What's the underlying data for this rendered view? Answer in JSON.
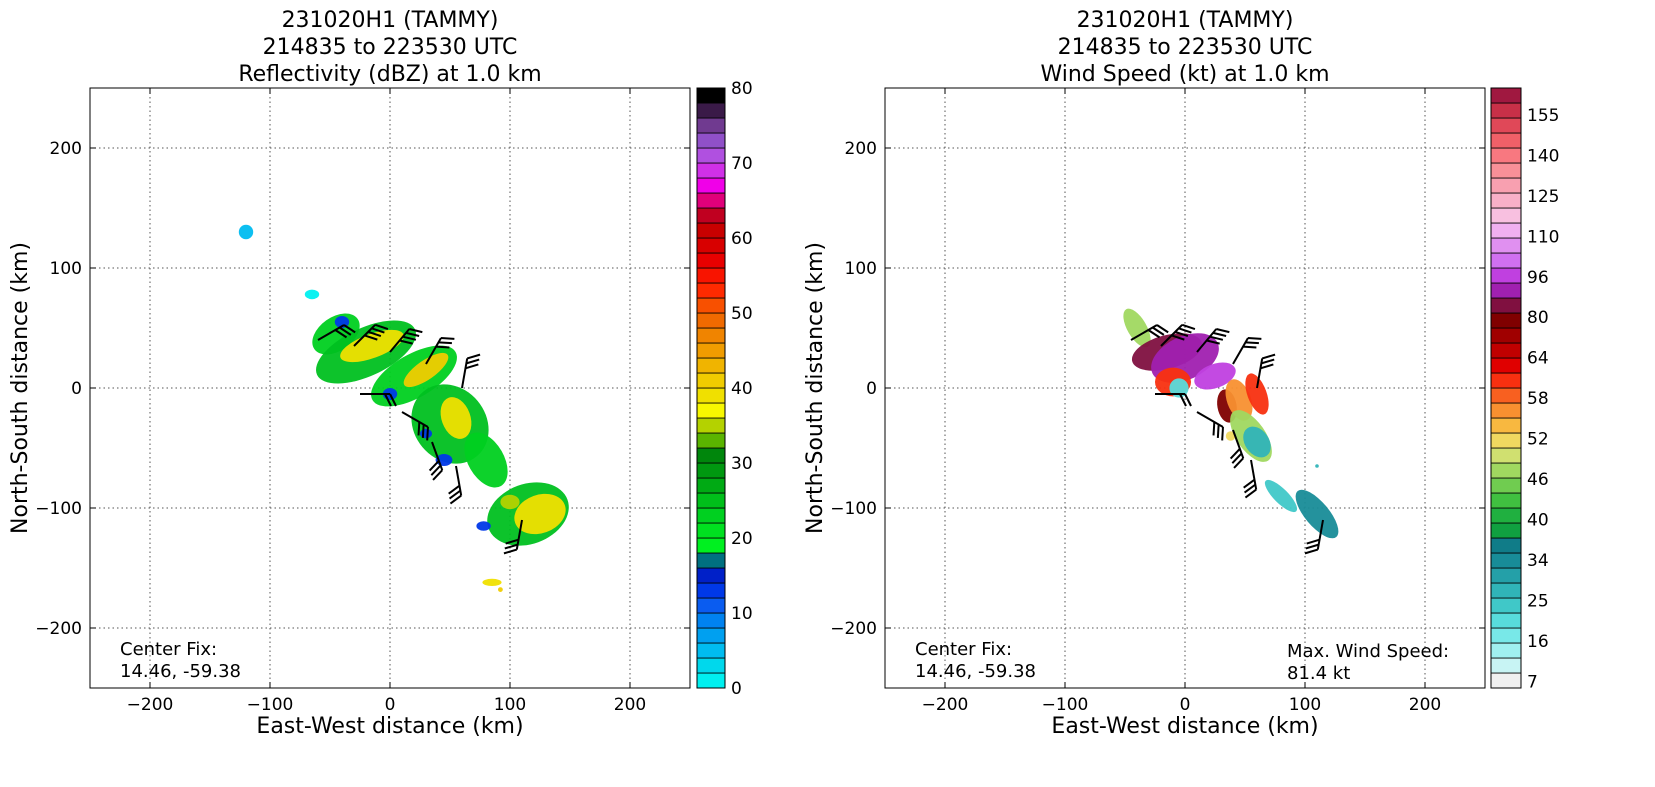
{
  "panels": [
    {
      "title_lines": [
        "231020H1 (TAMMY)",
        "214835 to 223530 UTC",
        "Reflectivity (dBZ) at 1.0 km"
      ],
      "xlabel": "East-West distance (km)",
      "ylabel": "North-South distance (km)",
      "fix_label": "Center Fix:",
      "fix_value": "14.46, -59.38",
      "note_lines": [],
      "colorbar": {
        "colors": [
          "#00f0f0",
          "#00d8ec",
          "#00bcf0",
          "#00a0f0",
          "#0082f0",
          "#0a5cf0",
          "#0038e8",
          "#0020c8",
          "#007080",
          "#00f020",
          "#00e020",
          "#00d020",
          "#00bf1a",
          "#00aa14",
          "#009810",
          "#00860c",
          "#5ab400",
          "#b4d200",
          "#f8f800",
          "#f0e000",
          "#f0cc00",
          "#f0b400",
          "#f09c00",
          "#f08400",
          "#f06a00",
          "#f85000",
          "#ff2a00",
          "#f81400",
          "#e80000",
          "#d80000",
          "#c80000",
          "#c00020",
          "#e0007a",
          "#f000e8",
          "#d030e8",
          "#b050e0",
          "#9050c8",
          "#703a90",
          "#3a1a48",
          "#000000"
        ],
        "ticks": [
          "0",
          "10",
          "20",
          "30",
          "40",
          "50",
          "60",
          "70",
          "80"
        ],
        "tick_positions": [
          0,
          5,
          10,
          15,
          20,
          25,
          30,
          35,
          40
        ]
      },
      "blobs": [
        {
          "x": -120,
          "y": 130,
          "rx": 6,
          "ry": 6,
          "color": "#00bcf0",
          "rot": 0
        },
        {
          "x": -65,
          "y": 78,
          "rx": 6,
          "ry": 4,
          "color": "#00f0f0",
          "rot": 0
        },
        {
          "x": -45,
          "y": 45,
          "rx": 22,
          "ry": 14,
          "color": "#00d020",
          "rot": -35
        },
        {
          "x": -20,
          "y": 30,
          "rx": 45,
          "ry": 20,
          "color": "#00c020",
          "rot": -25
        },
        {
          "x": 20,
          "y": 10,
          "rx": 40,
          "ry": 18,
          "color": "#00d020",
          "rot": -30
        },
        {
          "x": 50,
          "y": -30,
          "rx": 30,
          "ry": 35,
          "color": "#00c020",
          "rot": -40
        },
        {
          "x": 80,
          "y": -60,
          "rx": 15,
          "ry": 25,
          "color": "#00d020",
          "rot": -30
        },
        {
          "x": 115,
          "y": -105,
          "rx": 35,
          "ry": 25,
          "color": "#00c020",
          "rot": -20
        },
        {
          "x": -15,
          "y": 35,
          "rx": 28,
          "ry": 10,
          "color": "#f0e000",
          "rot": -20
        },
        {
          "x": 30,
          "y": 15,
          "rx": 22,
          "ry": 8,
          "color": "#f0cc00",
          "rot": -35
        },
        {
          "x": 55,
          "y": -25,
          "rx": 12,
          "ry": 18,
          "color": "#f0e000",
          "rot": -20
        },
        {
          "x": 125,
          "y": -105,
          "rx": 22,
          "ry": 16,
          "color": "#f0e000",
          "rot": -20
        },
        {
          "x": 100,
          "y": -95,
          "rx": 8,
          "ry": 6,
          "color": "#b4d200",
          "rot": 0
        },
        {
          "x": -40,
          "y": 55,
          "rx": 6,
          "ry": 5,
          "color": "#0038e8",
          "rot": 0
        },
        {
          "x": 0,
          "y": -5,
          "rx": 6,
          "ry": 5,
          "color": "#0038e8",
          "rot": 0
        },
        {
          "x": 45,
          "y": -60,
          "rx": 7,
          "ry": 5,
          "color": "#0038e8",
          "rot": 0
        },
        {
          "x": 30,
          "y": -38,
          "rx": 5,
          "ry": 4,
          "color": "#0038e8",
          "rot": 0
        },
        {
          "x": 78,
          "y": -115,
          "rx": 6,
          "ry": 4,
          "color": "#0038e8",
          "rot": 0
        },
        {
          "x": 85,
          "y": -162,
          "rx": 8,
          "ry": 3,
          "color": "#f0e000",
          "rot": 0
        },
        {
          "x": 92,
          "y": -168,
          "rx": 2,
          "ry": 2,
          "color": "#f0cc00",
          "rot": 0
        }
      ],
      "barbs": [
        {
          "x": -60,
          "y": 40,
          "dir": 60,
          "flags": 3
        },
        {
          "x": -30,
          "y": 35,
          "dir": 45,
          "flags": 4
        },
        {
          "x": 0,
          "y": 30,
          "dir": 40,
          "flags": 4
        },
        {
          "x": 30,
          "y": 20,
          "dir": 30,
          "flags": 3
        },
        {
          "x": 60,
          "y": 0,
          "dir": 10,
          "flags": 3
        },
        {
          "x": -25,
          "y": -5,
          "dir": 90,
          "flags": 2
        },
        {
          "x": 10,
          "y": -20,
          "dir": 120,
          "flags": 3
        },
        {
          "x": 35,
          "y": -45,
          "dir": 160,
          "flags": 3
        },
        {
          "x": 55,
          "y": -65,
          "dir": 170,
          "flags": 3
        },
        {
          "x": 110,
          "y": -110,
          "dir": 190,
          "flags": 3
        }
      ]
    },
    {
      "title_lines": [
        "231020H1 (TAMMY)",
        "214835 to 223530 UTC",
        "Wind Speed (kt) at 1.0 km"
      ],
      "xlabel": "East-West distance (km)",
      "ylabel": "North-South distance (km)",
      "fix_label": "Center Fix:",
      "fix_value": "14.46, -59.38",
      "note_lines": [
        "Max. Wind Speed:",
        "81.4 kt"
      ],
      "colorbar": {
        "colors": [
          "#f0f0f0",
          "#c8f4f4",
          "#a0f0f0",
          "#78e8e8",
          "#58dcdc",
          "#40c8c8",
          "#30b4b8",
          "#24a0a8",
          "#188c98",
          "#107c88",
          "#10a040",
          "#20b040",
          "#40c040",
          "#70cc50",
          "#a0d860",
          "#d0e070",
          "#f0d860",
          "#f8b840",
          "#f89030",
          "#f86020",
          "#f83010",
          "#e00000",
          "#c00000",
          "#a00000",
          "#800000",
          "#801040",
          "#a020b0",
          "#c040e0",
          "#d070f0",
          "#e090f0",
          "#f0b0f0",
          "#f8c0e0",
          "#f8b0c8",
          "#f8a0b0",
          "#f89098",
          "#f87880",
          "#f06068",
          "#e04858",
          "#c83048",
          "#a01840"
        ],
        "ticks": [
          "7",
          "16",
          "25",
          "34",
          "40",
          "46",
          "52",
          "58",
          "64",
          "80",
          "96",
          "110",
          "125",
          "140",
          "155"
        ],
        "tick_positions": [
          0.5,
          3.5,
          6.5,
          9.5,
          12.5,
          15.5,
          18.5,
          21.5,
          24.5,
          27.5,
          30.5,
          33.5,
          36.5,
          39.5,
          42.5
        ]
      },
      "blobs": [
        {
          "x": -40,
          "y": 50,
          "rx": 8,
          "ry": 18,
          "color": "#a0d860",
          "rot": -30
        },
        {
          "x": -15,
          "y": 30,
          "rx": 30,
          "ry": 14,
          "color": "#801040",
          "rot": -15
        },
        {
          "x": 0,
          "y": 25,
          "rx": 30,
          "ry": 18,
          "color": "#a020b0",
          "rot": -25
        },
        {
          "x": 25,
          "y": 10,
          "rx": 18,
          "ry": 10,
          "color": "#c040e0",
          "rot": -20
        },
        {
          "x": -10,
          "y": 5,
          "rx": 15,
          "ry": 12,
          "color": "#f83010",
          "rot": 0
        },
        {
          "x": -5,
          "y": 0,
          "rx": 8,
          "ry": 8,
          "color": "#58dcdc",
          "rot": 0
        },
        {
          "x": 35,
          "y": -15,
          "rx": 8,
          "ry": 14,
          "color": "#800000",
          "rot": -10
        },
        {
          "x": 45,
          "y": -10,
          "rx": 10,
          "ry": 18,
          "color": "#f89030",
          "rot": -20
        },
        {
          "x": 60,
          "y": -5,
          "rx": 8,
          "ry": 18,
          "color": "#f83010",
          "rot": -20
        },
        {
          "x": 55,
          "y": -40,
          "rx": 12,
          "ry": 25,
          "color": "#a0d860",
          "rot": -35
        },
        {
          "x": 60,
          "y": -45,
          "rx": 10,
          "ry": 14,
          "color": "#30b4b8",
          "rot": -35
        },
        {
          "x": 80,
          "y": -90,
          "rx": 6,
          "ry": 18,
          "color": "#40c8c8",
          "rot": -45
        },
        {
          "x": 110,
          "y": -105,
          "rx": 10,
          "ry": 25,
          "color": "#188c98",
          "rot": -40
        },
        {
          "x": 110,
          "y": -65,
          "rx": 1.5,
          "ry": 1.5,
          "color": "#30b4b8",
          "rot": 0
        },
        {
          "x": 38,
          "y": -40,
          "rx": 4,
          "ry": 4,
          "color": "#f0d860",
          "rot": 0
        }
      ],
      "barbs": [
        {
          "x": -45,
          "y": 40,
          "dir": 60,
          "flags": 3
        },
        {
          "x": -20,
          "y": 35,
          "dir": 45,
          "flags": 4
        },
        {
          "x": 10,
          "y": 30,
          "dir": 40,
          "flags": 4
        },
        {
          "x": 40,
          "y": 20,
          "dir": 30,
          "flags": 3
        },
        {
          "x": 60,
          "y": 0,
          "dir": 10,
          "flags": 3
        },
        {
          "x": -25,
          "y": -5,
          "dir": 90,
          "flags": 2
        },
        {
          "x": 10,
          "y": -20,
          "dir": 120,
          "flags": 3
        },
        {
          "x": 40,
          "y": -35,
          "dir": 160,
          "flags": 3
        },
        {
          "x": 55,
          "y": -60,
          "dir": 170,
          "flags": 3
        },
        {
          "x": 115,
          "y": -110,
          "dir": 190,
          "flags": 3
        }
      ]
    }
  ],
  "chart_data": [
    {
      "type": "heatmap",
      "title": "231020H1 (TAMMY) 214835 to 223530 UTC Reflectivity (dBZ) at 1.0 km",
      "xlabel": "East-West distance (km)",
      "ylabel": "North-South distance (km)",
      "xlim": [
        -250,
        250
      ],
      "ylim": [
        -250,
        250
      ],
      "xticks": [
        -200,
        -100,
        0,
        100,
        200
      ],
      "yticks": [
        -200,
        -100,
        0,
        100,
        200
      ],
      "grid": true,
      "colorbar_label": "Reflectivity (dBZ)",
      "colorbar_range": [
        0,
        80
      ],
      "center_fix": [
        14.46,
        -59.38
      ]
    },
    {
      "type": "heatmap",
      "title": "231020H1 (TAMMY) 214835 to 223530 UTC Wind Speed (kt) at 1.0 km",
      "xlabel": "East-West distance (km)",
      "ylabel": "North-South distance (km)",
      "xlim": [
        -250,
        250
      ],
      "ylim": [
        -250,
        250
      ],
      "xticks": [
        -200,
        -100,
        0,
        100,
        200
      ],
      "yticks": [
        -200,
        -100,
        0,
        100,
        200
      ],
      "grid": true,
      "colorbar_label": "Wind Speed (kt)",
      "colorbar_range": [
        7,
        155
      ],
      "center_fix": [
        14.46,
        -59.38
      ],
      "max_wind_speed_kt": 81.4
    }
  ]
}
